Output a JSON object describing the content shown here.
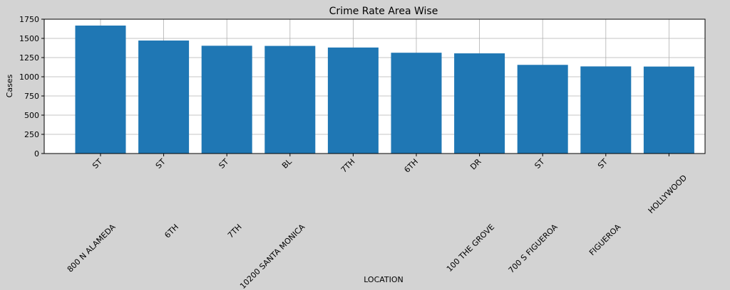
{
  "chart_data": {
    "type": "bar",
    "title": "Crime Rate Area Wise",
    "xlabel": "LOCATION",
    "ylabel": "Cases",
    "ylim": [
      0,
      1750
    ],
    "yticks": [
      0,
      250,
      500,
      750,
      1000,
      1250,
      1500,
      1750
    ],
    "grid": true,
    "categories": [
      "800 N  ALAMEDA                    ST",
      "6TH                    ST",
      "7TH                    ST",
      "10200    SANTA MONICA                    BL",
      "7TH",
      "6TH",
      "100    THE GROVE                    DR",
      "700 S  FIGUEROA                    ST",
      "FIGUEROA                    ST",
      "HOLLYWOOD"
    ],
    "values": [
      1667,
      1472,
      1404,
      1402,
      1381,
      1313,
      1305,
      1155,
      1135,
      1133
    ],
    "color": "#1f77b4"
  }
}
